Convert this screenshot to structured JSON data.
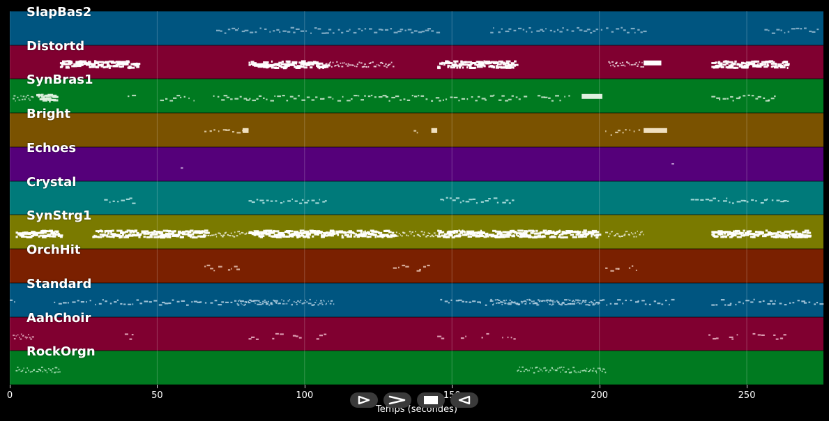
{
  "chart_data": {
    "type": "piano-roll",
    "xlabel": "Temps (secondes)",
    "xlim": [
      0,
      276
    ],
    "xticks": [
      0,
      50,
      100,
      150,
      200,
      250
    ],
    "grid": true,
    "tracks": [
      {
        "name": "SlapBas2",
        "color": "#005580",
        "note_color": "#9fc0d6",
        "segments": [
          [
            70,
            145,
            "dots"
          ],
          [
            163,
            215,
            "dots"
          ],
          [
            256,
            275,
            "dots"
          ]
        ],
        "blocks": []
      },
      {
        "name": "Distortd",
        "color": "#800030",
        "note_color": "#ffffff",
        "segments": [
          [
            17,
            43,
            "dense"
          ],
          [
            81,
            107,
            "dense"
          ],
          [
            145,
            171,
            "dense"
          ],
          [
            238,
            264,
            "dense"
          ],
          [
            107,
            130,
            "light"
          ],
          [
            203,
            215,
            "light"
          ]
        ],
        "blocks": [
          [
            215,
            221
          ]
        ]
      },
      {
        "name": "SynBras1",
        "color": "#007a20",
        "note_color": "#e0f0e0",
        "segments": [
          [
            1,
            8,
            "light"
          ],
          [
            9,
            15,
            "dense"
          ],
          [
            40,
            42,
            "dots"
          ],
          [
            51,
            63,
            "dots"
          ],
          [
            69,
            175,
            "dots"
          ],
          [
            179,
            190,
            "dots"
          ],
          [
            238,
            260,
            "dots"
          ]
        ],
        "blocks": [
          [
            194,
            201
          ]
        ]
      },
      {
        "name": "Bright",
        "color": "#7a5200",
        "note_color": "#f0e0c0",
        "segments": [
          [
            66,
            80,
            "dots"
          ],
          [
            137,
            139,
            "dots"
          ],
          [
            202,
            215,
            "dots"
          ]
        ],
        "blocks": [
          [
            79,
            81
          ],
          [
            143,
            145
          ],
          [
            215,
            223
          ]
        ]
      },
      {
        "name": "Echoes",
        "color": "#55007a",
        "note_color": "#d0b0e0",
        "segments": [
          [
            58,
            58.8,
            "dots"
          ],
          [
            224.5,
            225,
            "dots"
          ]
        ],
        "blocks": []
      },
      {
        "name": "Crystal",
        "color": "#007a7a",
        "note_color": "#c8ecec",
        "segments": [
          [
            32,
            42,
            "dots"
          ],
          [
            81,
            107,
            "dots"
          ],
          [
            146,
            171,
            "dots"
          ],
          [
            231,
            264,
            "dots"
          ]
        ],
        "blocks": []
      },
      {
        "name": "SynStrg1",
        "color": "#7a7a00",
        "note_color": "#ffffff",
        "segments": [
          [
            2,
            17,
            "dense"
          ],
          [
            28,
            66,
            "dense"
          ],
          [
            81,
            130,
            "dense"
          ],
          [
            145,
            199,
            "dense"
          ],
          [
            238,
            271,
            "dense"
          ],
          [
            66,
            81,
            "light"
          ],
          [
            130,
            145,
            "light"
          ],
          [
            202,
            215,
            "light"
          ]
        ],
        "blocks": []
      },
      {
        "name": "OrchHit",
        "color": "#7a2000",
        "note_color": "#f0d0c0",
        "segments": [
          [
            66,
            71,
            "dots"
          ],
          [
            74,
            78,
            "dots"
          ],
          [
            130,
            135,
            "dots"
          ],
          [
            138,
            142,
            "dots"
          ],
          [
            202,
            207,
            "dots"
          ],
          [
            210,
            214,
            "dots"
          ]
        ],
        "blocks": []
      },
      {
        "name": "Standard",
        "color": "#005580",
        "note_color": "#c0d8e8",
        "segments": [
          [
            0,
            2,
            "dots"
          ],
          [
            15,
            90,
            "dots"
          ],
          [
            77,
            110,
            "light"
          ],
          [
            146,
            225,
            "dots"
          ],
          [
            163,
            200,
            "light"
          ],
          [
            238,
            275,
            "dots"
          ]
        ],
        "blocks": []
      },
      {
        "name": "AahChoir",
        "color": "#800030",
        "note_color": "#f0c0d0",
        "segments": [
          [
            1,
            8,
            "light"
          ],
          [
            39,
            42,
            "dots"
          ],
          [
            81,
            84,
            "dots"
          ],
          [
            89,
            92,
            "dots"
          ],
          [
            96,
            99,
            "dots"
          ],
          [
            104,
            107,
            "dots"
          ],
          [
            145,
            147,
            "dots"
          ],
          [
            153,
            155,
            "dots"
          ],
          [
            160,
            163,
            "dots"
          ],
          [
            167,
            171,
            "dots"
          ],
          [
            237,
            240,
            "dots"
          ],
          [
            244,
            247,
            "dots"
          ],
          [
            252,
            255,
            "dots"
          ],
          [
            259,
            263,
            "dots"
          ]
        ],
        "blocks": []
      },
      {
        "name": "RockOrgn",
        "color": "#007a20",
        "note_color": "#c8f0d0",
        "segments": [
          [
            2,
            17,
            "light"
          ],
          [
            172,
            202,
            "light"
          ]
        ],
        "blocks": []
      }
    ]
  },
  "controls": [
    {
      "name": "play-button",
      "icon": "play-icon"
    },
    {
      "name": "next-button",
      "icon": "chevron-right-icon"
    },
    {
      "name": "stop-button",
      "icon": "stop-icon"
    },
    {
      "name": "rewind-button",
      "icon": "rewind-icon"
    }
  ]
}
